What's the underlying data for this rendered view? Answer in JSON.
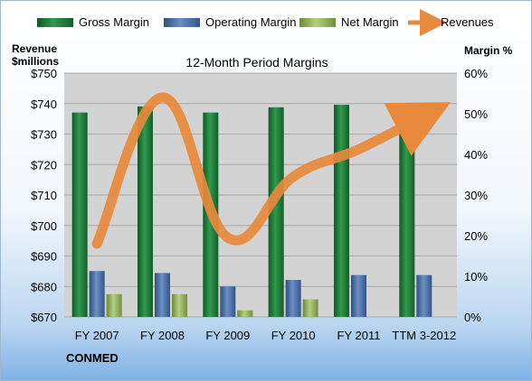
{
  "colors": {
    "gross": "#1f7a3a",
    "operating": "#4a6fa5",
    "net": "#8fb05a",
    "revenues": "#e8893b",
    "plot_bg": "#d3d3d3"
  },
  "chart_data": {
    "type": "bar",
    "title": "12-Month Period Margins",
    "company": "CONMED",
    "categories": [
      "FY 2007",
      "FY 2008",
      "FY 2009",
      "FY 2010",
      "FY 2011",
      "TTM 3-2012"
    ],
    "y_left": {
      "label_line1": "Revenue",
      "label_line2": "$millions",
      "ylim": [
        670,
        750
      ],
      "ticks": [
        "$750",
        "$740",
        "$730",
        "$720",
        "$710",
        "$700",
        "$690",
        "$680",
        "$670"
      ]
    },
    "y_right": {
      "label": "Margin %",
      "ylim": [
        0,
        60
      ],
      "ticks": [
        "60%",
        "50%",
        "40%",
        "30%",
        "20%",
        "10%",
        "0%"
      ]
    },
    "series": [
      {
        "name": "Gross Margin",
        "axis": "right",
        "kind": "bar",
        "values": [
          50.3,
          51.8,
          50.3,
          51.6,
          52.2,
          52.2
        ]
      },
      {
        "name": "Operating Margin",
        "axis": "right",
        "kind": "bar",
        "values": [
          11.3,
          10.8,
          7.5,
          9.1,
          10.3,
          10.3
        ]
      },
      {
        "name": "Net Margin",
        "axis": "right",
        "kind": "bar",
        "values": [
          5.6,
          5.6,
          1.6,
          4.3,
          0,
          0
        ]
      },
      {
        "name": "Revenues",
        "axis": "left",
        "kind": "line",
        "values": [
          694,
          742,
          696,
          716,
          725,
          736
        ]
      }
    ],
    "grid": true,
    "legend": "top"
  }
}
